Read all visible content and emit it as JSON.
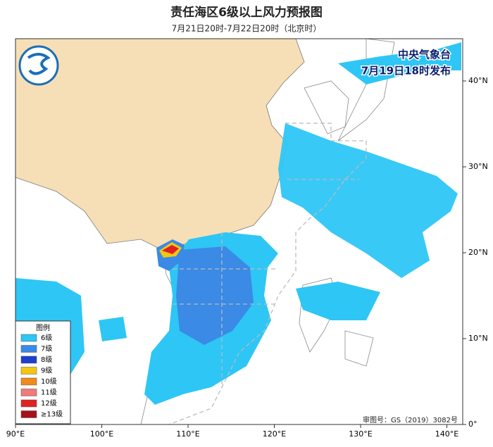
{
  "header": {
    "title": "责任海区6级以上风力预报图",
    "subtitle": "7月21日20时-7月22日20时（北京时）"
  },
  "issuer": {
    "line1": "中央气象台",
    "line2": "7月19日18时发布"
  },
  "legend": {
    "title": "图例",
    "items": [
      {
        "label": "6级",
        "color": "#2ec6f5"
      },
      {
        "label": "7级",
        "color": "#3a8ae6"
      },
      {
        "label": "8级",
        "color": "#1c3fd0"
      },
      {
        "label": "9级",
        "color": "#f3c614"
      },
      {
        "label": "10级",
        "color": "#f08a1c"
      },
      {
        "label": "11级",
        "color": "#ef7b7b"
      },
      {
        "label": "12级",
        "color": "#e02222"
      },
      {
        "label": "≥13级",
        "color": "#a8101a"
      }
    ]
  },
  "map": {
    "lon_ticks": [
      {
        "value": 90,
        "label": "90°E"
      },
      {
        "value": 100,
        "label": "100°E"
      },
      {
        "value": 110,
        "label": "110°E"
      },
      {
        "value": 120,
        "label": "120°E"
      },
      {
        "value": 130,
        "label": "130°E"
      },
      {
        "value": 140,
        "label": "140°E"
      }
    ],
    "lat_ticks": [
      {
        "value": 0,
        "label": "0°"
      },
      {
        "value": 10,
        "label": "10°N"
      },
      {
        "value": 20,
        "label": "20°N"
      },
      {
        "value": 30,
        "label": "30°N"
      },
      {
        "value": 40,
        "label": "40°N"
      }
    ]
  },
  "approval": "审图号：GS（2019）3082号"
}
